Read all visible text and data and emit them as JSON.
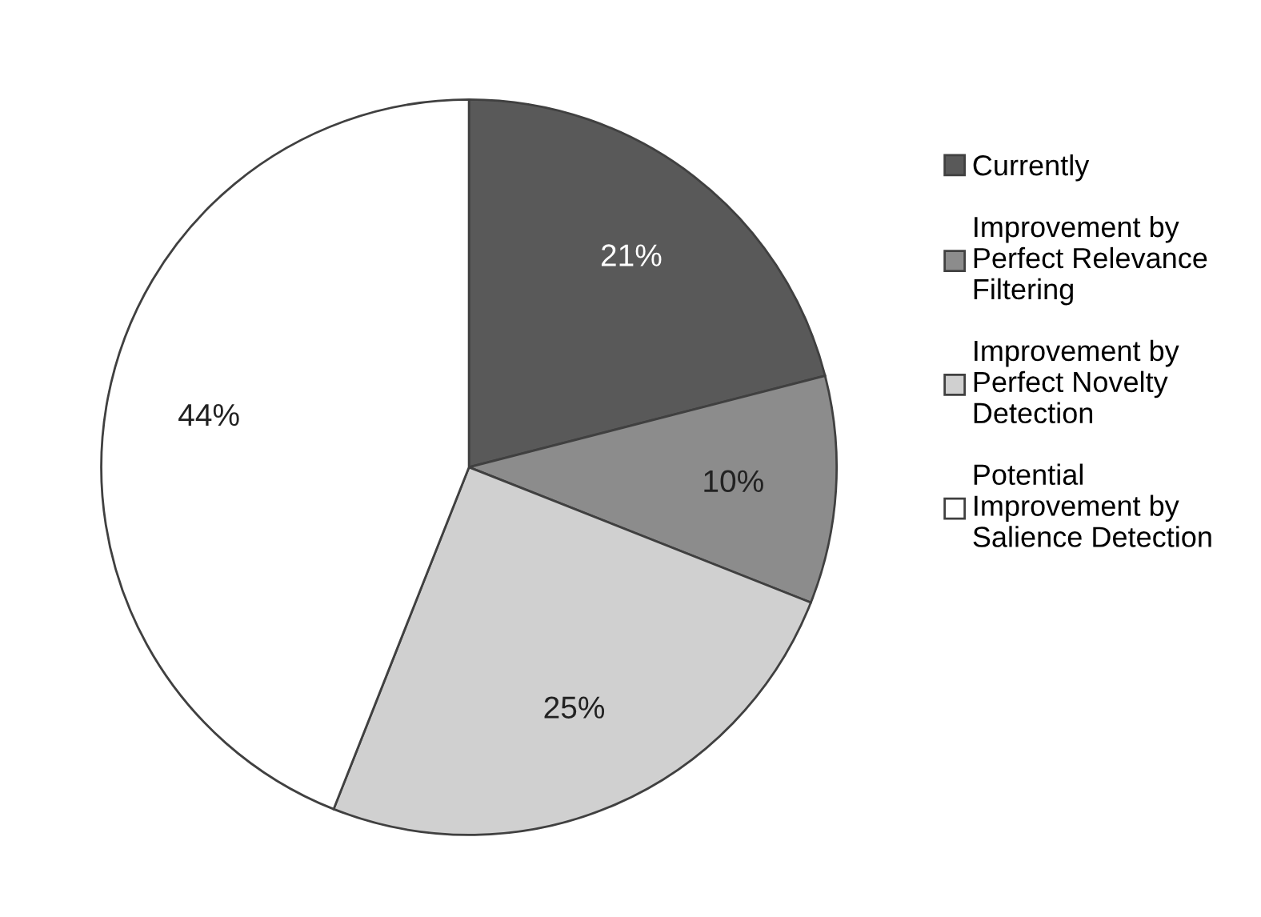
{
  "chart_data": {
    "type": "pie",
    "categories": [
      "Currently",
      "Improvement by\nPerfect Relevance\nFiltering",
      "Improvement by\nPerfect Novelty\nDetection",
      "Potential\nImprovement by\nSalience Detection"
    ],
    "values": [
      21,
      10,
      25,
      44
    ],
    "colors": [
      "#595959",
      "#8c8c8c",
      "#d0d0d0",
      "#ffffff"
    ],
    "value_labels": [
      "21%",
      "10%",
      "25%",
      "44%"
    ],
    "legend": "right"
  }
}
